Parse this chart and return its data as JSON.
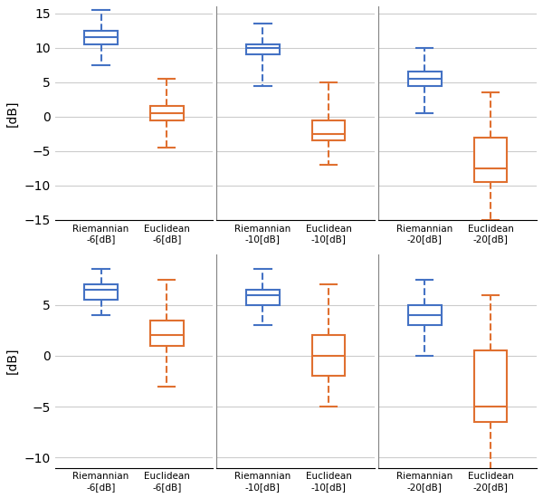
{
  "blue_color": "#4472C4",
  "orange_color": "#E07030",
  "background_color": "#ffffff",
  "grid_color": "#cccccc",
  "row1": {
    "subplot1": {
      "blue": {
        "whislo": 7.5,
        "q1": 10.5,
        "med": 11.5,
        "q3": 12.5,
        "whishi": 15.5
      },
      "orange": {
        "whislo": -4.5,
        "q1": -0.5,
        "med": 0.5,
        "q3": 1.5,
        "whishi": 5.5
      },
      "xtick_labels": [
        "Riemannian\n-6[dB]",
        "Euclidean\n-6[dB]"
      ]
    },
    "subplot2": {
      "blue": {
        "whislo": 4.5,
        "q1": 9.0,
        "med": 10.0,
        "q3": 10.5,
        "whishi": 13.5
      },
      "orange": {
        "whislo": -7.0,
        "q1": -3.5,
        "med": -2.5,
        "q3": -0.5,
        "whishi": 5.0
      },
      "xtick_labels": [
        "Riemannian\n-10[dB]",
        "Euclidean\n-10[dB]"
      ]
    },
    "subplot3": {
      "blue": {
        "whislo": 0.5,
        "q1": 4.5,
        "med": 5.5,
        "q3": 6.5,
        "whishi": 10.0
      },
      "orange": {
        "whislo": -15.0,
        "q1": -9.5,
        "med": -7.5,
        "q3": -3.0,
        "whishi": 3.5
      },
      "xtick_labels": [
        "Riemannian\n-20[dB]",
        "Euclidean\n-20[dB]"
      ]
    },
    "ylim": [
      -15,
      16
    ],
    "yticks": [
      -15,
      -10,
      -5,
      0,
      5,
      10,
      15
    ],
    "ylabel": "[dB]"
  },
  "row2": {
    "subplot1": {
      "blue": {
        "whislo": 4.0,
        "q1": 5.5,
        "med": 6.5,
        "q3": 7.0,
        "whishi": 8.5
      },
      "orange": {
        "whislo": -3.0,
        "q1": 1.0,
        "med": 2.0,
        "q3": 3.5,
        "whishi": 7.5
      },
      "xtick_labels": [
        "Riemannian\n-6[dB]",
        "Euclidean\n-6[dB]"
      ]
    },
    "subplot2": {
      "blue": {
        "whislo": 3.0,
        "q1": 5.0,
        "med": 6.0,
        "q3": 6.5,
        "whishi": 8.5
      },
      "orange": {
        "whislo": -5.0,
        "q1": -2.0,
        "med": 0.0,
        "q3": 2.0,
        "whishi": 7.0
      },
      "xtick_labels": [
        "Riemannian\n-10[dB]",
        "Euclidean\n-10[dB]"
      ]
    },
    "subplot3": {
      "blue": {
        "whislo": 0.0,
        "q1": 3.0,
        "med": 4.0,
        "q3": 5.0,
        "whishi": 7.5
      },
      "orange": {
        "whislo": -11.5,
        "q1": -6.5,
        "med": -5.0,
        "q3": 0.5,
        "whishi": 6.0
      },
      "xtick_labels": [
        "Riemannian\n-20[dB]",
        "Euclidean\n-20[dB]"
      ]
    },
    "ylim": [
      -11,
      10
    ],
    "yticks": [
      -10,
      -5,
      0,
      5
    ],
    "ylabel": "[dB]"
  },
  "box_width": 0.5,
  "linewidth": 1.5
}
